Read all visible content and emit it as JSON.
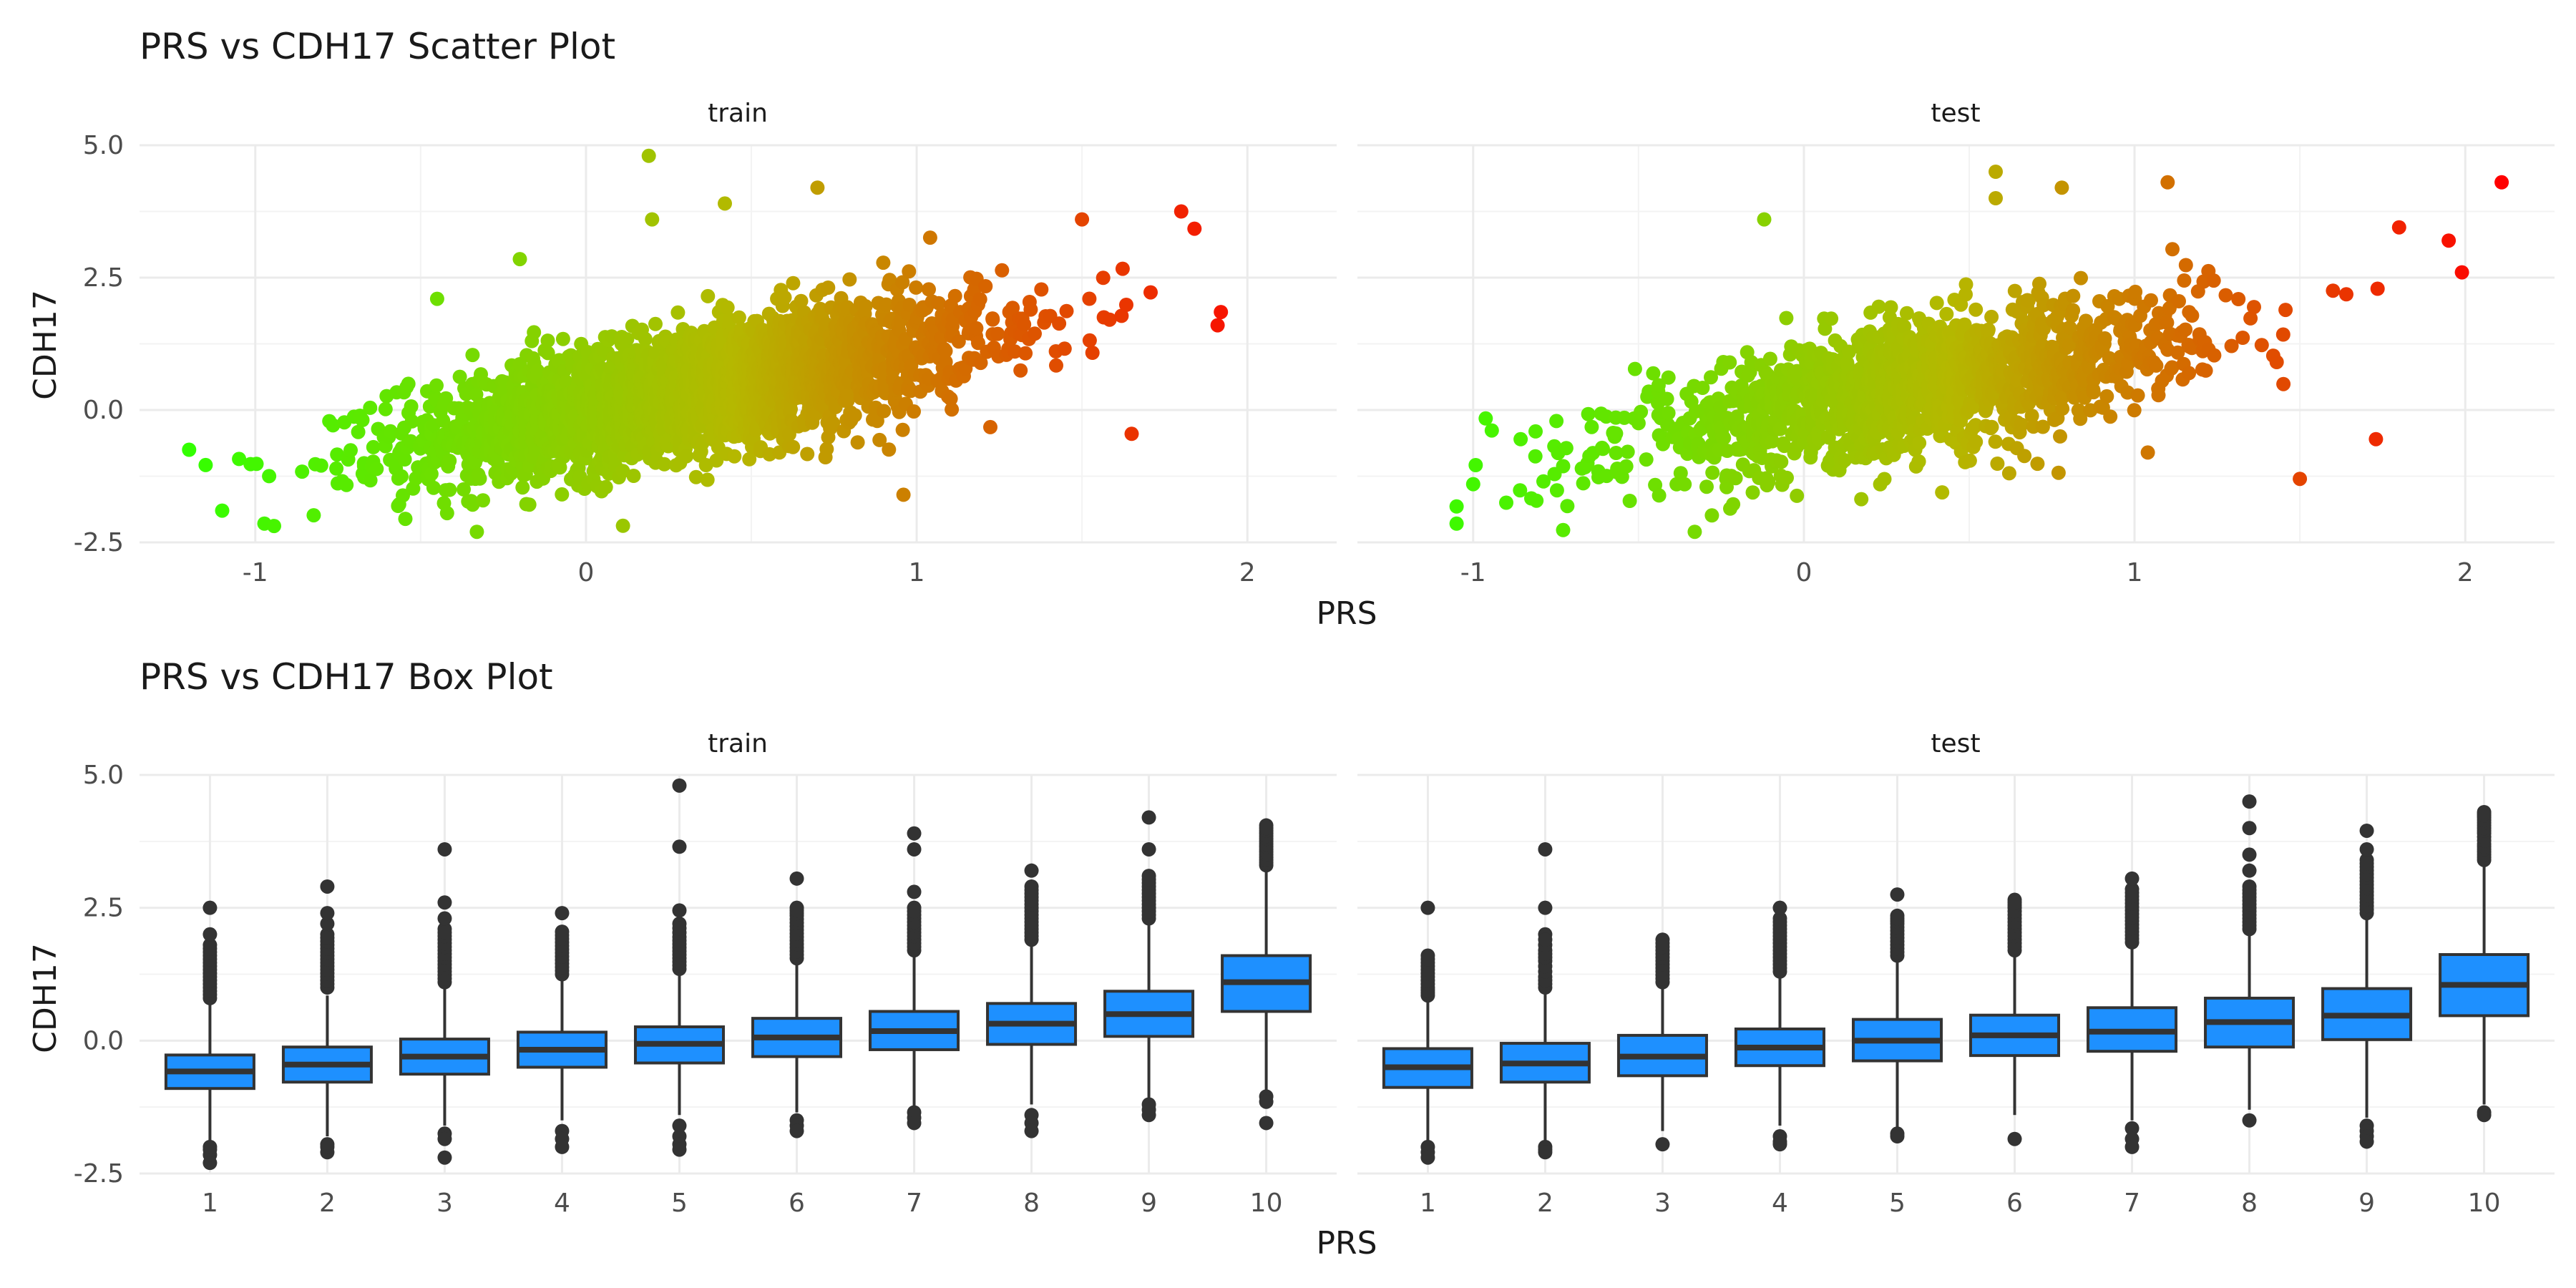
{
  "chart_data": [
    {
      "type": "scatter",
      "title": "PRS vs CDH17 Scatter Plot",
      "xlabel": "PRS",
      "ylabel": "CDH17",
      "xlim": [
        -1.35,
        2.27
      ],
      "ylim": [
        -2.5,
        5.0
      ],
      "x_ticks": [
        -1,
        0,
        1,
        2
      ],
      "y_ticks": [
        -2.5,
        0.0,
        2.5,
        5.0
      ],
      "y_tick_labels": [
        "-2.5",
        "0.0",
        "2.5",
        "5.0"
      ],
      "color_gradient": {
        "low": "#33ff00",
        "mid": "#b5b800",
        "high": "#ff0000",
        "maps_to": "PRS"
      },
      "panels": [
        {
          "label": "train",
          "trend": {
            "slope": 1.15,
            "intercept": 0.0
          },
          "x_range": [
            -1.2,
            1.92
          ],
          "outliers": [
            {
              "x": 0.19,
              "y": 4.8
            },
            {
              "x": 0.7,
              "y": 4.2
            },
            {
              "x": 1.8,
              "y": 3.75
            },
            {
              "x": 1.92,
              "y": 1.85
            },
            {
              "x": 1.91,
              "y": 1.6
            },
            {
              "x": -1.2,
              "y": -0.75
            },
            {
              "x": -1.1,
              "y": -1.9
            },
            {
              "x": 1.65,
              "y": -0.45
            },
            {
              "x": 0.2,
              "y": 3.6
            },
            {
              "x": 0.42,
              "y": 3.9
            },
            {
              "x": -0.33,
              "y": -2.3
            },
            {
              "x": 0.96,
              "y": -1.6
            },
            {
              "x": -0.2,
              "y": 2.85
            },
            {
              "x": 1.5,
              "y": 3.6
            },
            {
              "x": -0.45,
              "y": 2.1
            }
          ]
        },
        {
          "label": "test",
          "trend": {
            "slope": 1.2,
            "intercept": 0.0
          },
          "x_range": [
            -1.1,
            2.11
          ],
          "outliers": [
            {
              "x": 2.11,
              "y": 4.3
            },
            {
              "x": 0.58,
              "y": 4.5
            },
            {
              "x": 0.58,
              "y": 4.0
            },
            {
              "x": -0.12,
              "y": 3.6
            },
            {
              "x": 1.1,
              "y": 4.3
            },
            {
              "x": 1.99,
              "y": 2.6
            },
            {
              "x": 1.95,
              "y": 3.2
            },
            {
              "x": 1.5,
              "y": -1.3
            },
            {
              "x": 1.73,
              "y": -0.55
            },
            {
              "x": -1.0,
              "y": -1.4
            },
            {
              "x": -0.9,
              "y": -1.75
            },
            {
              "x": -0.33,
              "y": -2.3
            },
            {
              "x": 0.78,
              "y": 4.2
            },
            {
              "x": 1.8,
              "y": 3.45
            }
          ]
        }
      ]
    },
    {
      "type": "box",
      "title": "PRS vs CDH17 Box Plot",
      "xlabel": "PRS",
      "ylabel": "CDH17",
      "ylim": [
        -2.5,
        5.0
      ],
      "categories": [
        "1",
        "2",
        "3",
        "4",
        "5",
        "6",
        "7",
        "8",
        "9",
        "10"
      ],
      "y_ticks": [
        -2.5,
        0.0,
        2.5,
        5.0
      ],
      "y_tick_labels": [
        "-2.5",
        "0.0",
        "2.5",
        "5.0"
      ],
      "box_color": "#1e90ff",
      "line_color": "#333333",
      "panels": [
        {
          "label": "train",
          "boxes": [
            {
              "q1": -0.9,
              "median": -0.58,
              "q3": -0.27,
              "lw": -1.95,
              "uw": 0.7,
              "out_low": [
                -2.3,
                -2.15,
                -2.05,
                -2.0
              ],
              "out_high": [
                0.8,
                1.0,
                1.2,
                1.4,
                1.6,
                1.8,
                2.0,
                2.5
              ]
            },
            {
              "q1": -0.78,
              "median": -0.45,
              "q3": -0.12,
              "lw": -1.8,
              "uw": 0.85,
              "out_low": [
                -2.1,
                -2.0,
                -1.95
              ],
              "out_high": [
                1.0,
                1.2,
                1.4,
                1.6,
                1.8,
                2.0,
                2.2,
                2.4,
                2.9
              ]
            },
            {
              "q1": -0.63,
              "median": -0.3,
              "q3": 0.03,
              "lw": -1.6,
              "uw": 1.0,
              "out_low": [
                -1.75,
                -1.85,
                -2.2
              ],
              "out_high": [
                1.1,
                1.3,
                1.5,
                1.7,
                1.9,
                2.1,
                2.3,
                2.6,
                3.6
              ]
            },
            {
              "q1": -0.5,
              "median": -0.17,
              "q3": 0.16,
              "lw": -1.5,
              "uw": 1.15,
              "out_low": [
                -1.7,
                -1.85,
                -2.0
              ],
              "out_high": [
                1.25,
                1.45,
                1.65,
                1.85,
                2.05,
                2.4
              ]
            },
            {
              "q1": -0.42,
              "median": -0.06,
              "q3": 0.26,
              "lw": -1.4,
              "uw": 1.25,
              "out_low": [
                -1.6,
                -1.8,
                -1.95,
                -2.05
              ],
              "out_high": [
                1.35,
                1.55,
                1.75,
                1.95,
                2.2,
                2.45,
                3.65,
                4.8
              ]
            },
            {
              "q1": -0.3,
              "median": 0.06,
              "q3": 0.42,
              "lw": -1.35,
              "uw": 1.45,
              "out_low": [
                -1.5,
                -1.6,
                -1.7
              ],
              "out_high": [
                1.55,
                1.75,
                1.95,
                2.15,
                2.35,
                2.5,
                3.05
              ]
            },
            {
              "q1": -0.17,
              "median": 0.18,
              "q3": 0.55,
              "lw": -1.25,
              "uw": 1.6,
              "out_low": [
                -1.35,
                -1.45,
                -1.55
              ],
              "out_high": [
                1.7,
                1.9,
                2.1,
                2.3,
                2.5,
                2.8,
                3.6,
                3.9
              ]
            },
            {
              "q1": -0.07,
              "median": 0.32,
              "q3": 0.7,
              "lw": -1.2,
              "uw": 1.8,
              "out_low": [
                -1.4,
                -1.55,
                -1.7
              ],
              "out_high": [
                1.9,
                2.1,
                2.3,
                2.5,
                2.7,
                2.9,
                3.2
              ]
            },
            {
              "q1": 0.08,
              "median": 0.5,
              "q3": 0.93,
              "lw": -1.1,
              "uw": 2.2,
              "out_low": [
                -1.2,
                -1.3,
                -1.4
              ],
              "out_high": [
                2.3,
                2.5,
                2.7,
                2.9,
                3.1,
                3.6,
                4.2
              ]
            },
            {
              "q1": 0.55,
              "median": 1.1,
              "q3": 1.6,
              "lw": -0.95,
              "uw": 3.2,
              "out_low": [
                -1.05,
                -1.15,
                -1.55
              ],
              "out_high": [
                3.3,
                3.45,
                3.6,
                3.75,
                3.9,
                4.05
              ]
            }
          ]
        },
        {
          "label": "test",
          "boxes": [
            {
              "q1": -0.88,
              "median": -0.5,
              "q3": -0.15,
              "lw": -1.9,
              "uw": 0.75,
              "out_low": [
                -2.0,
                -2.1,
                -2.2
              ],
              "out_high": [
                0.85,
                1.0,
                1.2,
                1.4,
                1.6,
                2.5
              ]
            },
            {
              "q1": -0.78,
              "median": -0.43,
              "q3": -0.05,
              "lw": -1.9,
              "uw": 0.9,
              "out_low": [
                -2.0,
                -2.05,
                -2.1
              ],
              "out_high": [
                1.0,
                1.2,
                1.5,
                1.7,
                2.0,
                2.5,
                3.6
              ]
            },
            {
              "q1": -0.66,
              "median": -0.3,
              "q3": 0.1,
              "lw": -1.7,
              "uw": 1.0,
              "out_low": [
                -1.95
              ],
              "out_high": [
                1.1,
                1.3,
                1.5,
                1.7,
                1.9
              ]
            },
            {
              "q1": -0.47,
              "median": -0.13,
              "q3": 0.22,
              "lw": -1.6,
              "uw": 1.2,
              "out_low": [
                -1.8,
                -1.9,
                -1.95
              ],
              "out_high": [
                1.3,
                1.5,
                1.7,
                1.9,
                2.1,
                2.3,
                2.5
              ]
            },
            {
              "q1": -0.38,
              "median": 0.0,
              "q3": 0.4,
              "lw": -1.65,
              "uw": 1.5,
              "out_low": [
                -1.75,
                -1.8
              ],
              "out_high": [
                1.6,
                1.8,
                2.0,
                2.2,
                2.35,
                2.75
              ]
            },
            {
              "q1": -0.28,
              "median": 0.1,
              "q3": 0.48,
              "lw": -1.4,
              "uw": 1.6,
              "out_low": [
                -1.85
              ],
              "out_high": [
                1.7,
                1.9,
                2.1,
                2.3,
                2.5,
                2.65
              ]
            },
            {
              "q1": -0.2,
              "median": 0.17,
              "q3": 0.62,
              "lw": -1.5,
              "uw": 1.75,
              "out_low": [
                -1.65,
                -1.85,
                -2.0
              ],
              "out_high": [
                1.85,
                2.05,
                2.25,
                2.45,
                2.65,
                2.85,
                3.05
              ]
            },
            {
              "q1": -0.12,
              "median": 0.35,
              "q3": 0.8,
              "lw": -1.3,
              "uw": 2.0,
              "out_low": [
                -1.5
              ],
              "out_high": [
                2.1,
                2.3,
                2.5,
                2.7,
                2.9,
                3.2,
                3.5,
                4.0,
                4.5
              ]
            },
            {
              "q1": 0.02,
              "median": 0.47,
              "q3": 0.98,
              "lw": -1.45,
              "uw": 2.3,
              "out_low": [
                -1.6,
                -1.7,
                -1.8,
                -1.9
              ],
              "out_high": [
                2.4,
                2.6,
                2.8,
                3.0,
                3.2,
                3.4,
                3.6,
                3.95
              ]
            },
            {
              "q1": 0.47,
              "median": 1.05,
              "q3": 1.62,
              "lw": -1.2,
              "uw": 3.3,
              "out_low": [
                -1.35,
                -1.4
              ],
              "out_high": [
                3.4,
                3.55,
                3.7,
                3.9,
                4.05,
                4.2,
                4.3
              ]
            }
          ]
        }
      ]
    }
  ]
}
